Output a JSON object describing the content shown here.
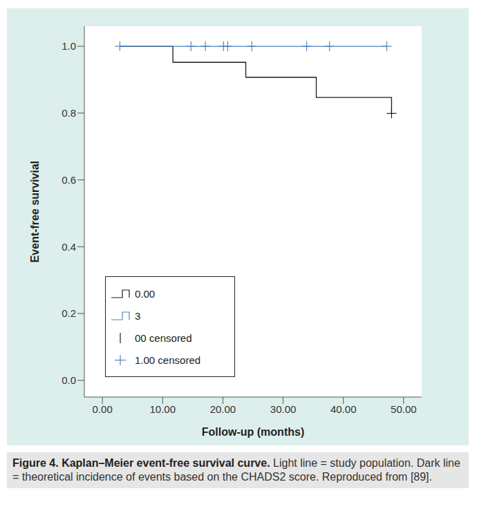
{
  "chart_data": {
    "type": "line",
    "x_label": "Follow-up (months)",
    "y_label": "Event-free survivial",
    "xlim": [
      -3,
      53
    ],
    "ylim": [
      -0.05,
      1.06
    ],
    "xticks": [
      {
        "value": 0,
        "label": "0.00"
      },
      {
        "value": 10,
        "label": "10.00"
      },
      {
        "value": 20,
        "label": "20.00"
      },
      {
        "value": 30,
        "label": "30.00"
      },
      {
        "value": 40,
        "label": "40.00"
      },
      {
        "value": 50,
        "label": "50.00"
      }
    ],
    "yticks": [
      {
        "value": 0,
        "label": "0.0"
      },
      {
        "value": 0.2,
        "label": "0.2"
      },
      {
        "value": 0.4,
        "label": "0.4"
      },
      {
        "value": 0.6,
        "label": "0.6"
      },
      {
        "value": 0.8,
        "label": "0.8"
      },
      {
        "value": 1,
        "label": "1.0"
      }
    ],
    "grid": false,
    "legend": "lower left",
    "series": [
      {
        "name": "0.00",
        "type": "line",
        "line_style": "step",
        "color": "#1a1a1a",
        "x": [
          2.9,
          11.7,
          23.8,
          35.5,
          48.0
        ],
        "values": [
          1.0,
          0.952,
          0.907,
          0.847,
          0.799
        ]
      },
      {
        "name": "3",
        "type": "line",
        "line_style": "step",
        "color": "#4f86bd",
        "x": [
          2.9,
          47.2
        ],
        "values": [
          1.0,
          1.0
        ]
      },
      {
        "name": "00 censored",
        "type": "scatter",
        "marker": "|",
        "color": "#1a1a1a",
        "x": [
          48.0
        ],
        "values": [
          0.799
        ]
      },
      {
        "name": "1.00 censored",
        "type": "scatter",
        "marker": "+",
        "color": "#4f86bd",
        "x": [
          2.9,
          14.7,
          17.1,
          20.1,
          20.8,
          24.8,
          33.9,
          37.7,
          47.2
        ],
        "values": [
          1.0,
          1.0,
          1.0,
          1.0,
          1.0,
          1.0,
          1.0,
          1.0,
          1.0
        ]
      }
    ],
    "caption": {
      "title": "Figure 4. Kaplan–Meier event-free survival curve.",
      "text": "Light line = study population. Dark line = theoretical incidence of events based on the CHADS2 score. Reproduced from [89]."
    }
  }
}
